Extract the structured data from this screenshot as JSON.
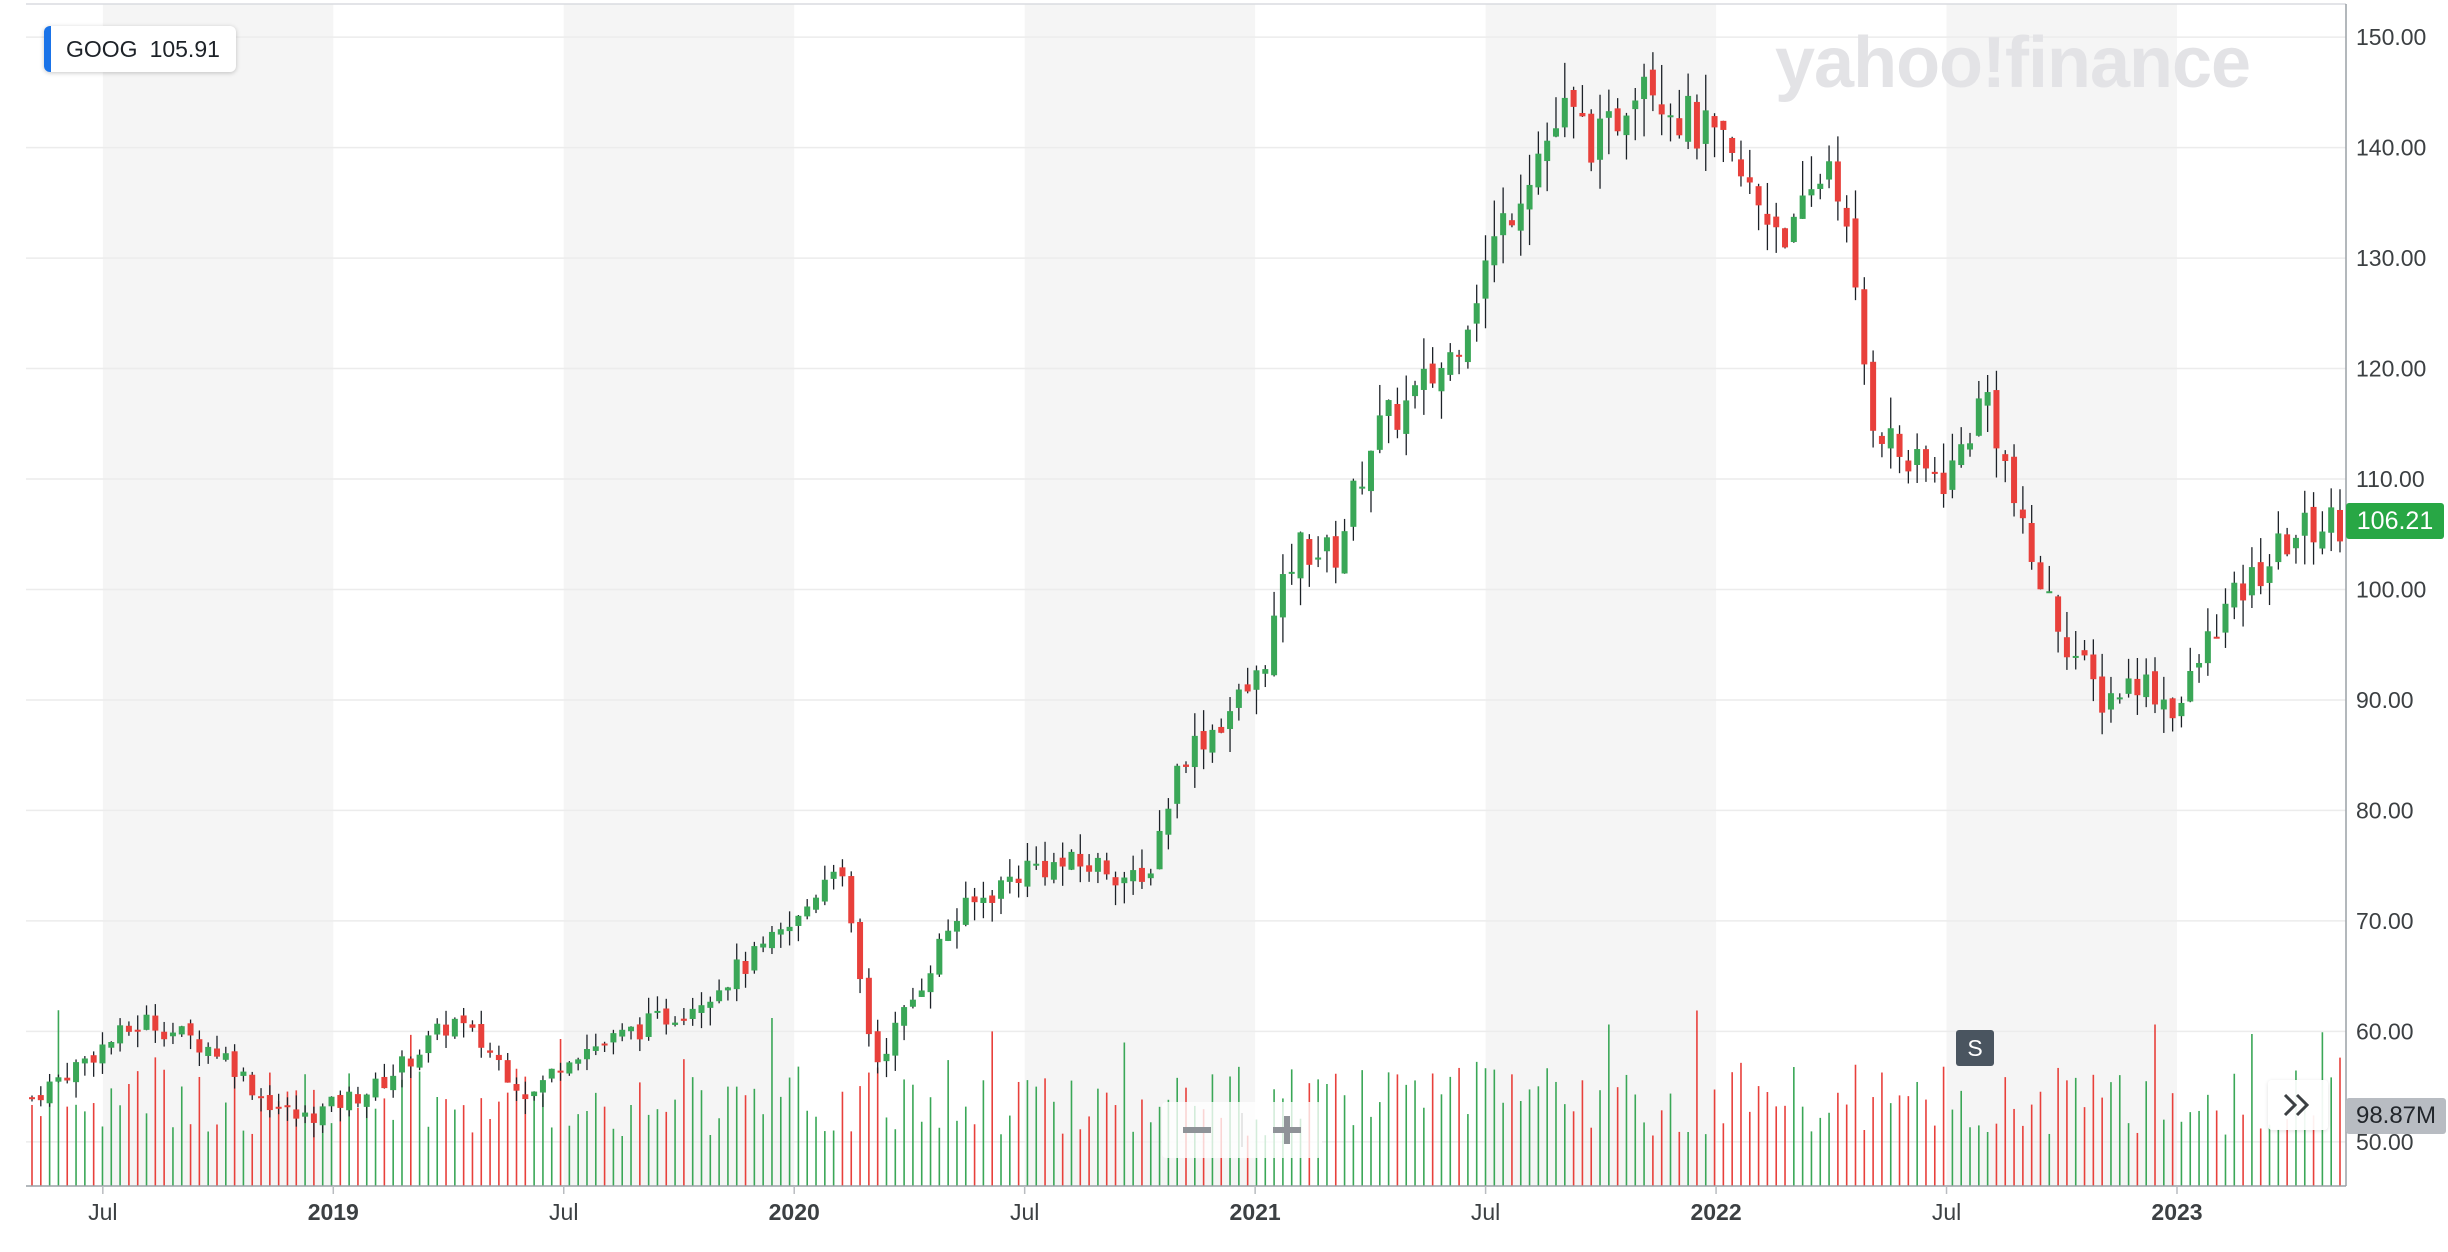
{
  "ticker": {
    "symbol": "GOOG",
    "value": "105.91",
    "accent": "#1a73e8"
  },
  "brand": {
    "watermark": "yahoo!finance"
  },
  "price_tag": {
    "label": "106.21",
    "color": "#28a745"
  },
  "volume_tag": {
    "label": "98.87M"
  },
  "split_marker": {
    "label": "S"
  },
  "controls": {
    "zoom_out_icon": "minus-icon",
    "zoom_in_icon": "plus-icon",
    "expand_icon": "double-chevron-right-icon"
  },
  "colors": {
    "up": "#3aa757",
    "down": "#e8403b",
    "shade": "#f5f5f5",
    "grid": "#ececec",
    "axis_text": "#3c4043"
  },
  "chart_data": {
    "type": "candlestick",
    "title": "",
    "xlabel": "",
    "ylabel": "",
    "ylim": [
      46,
      153
    ],
    "grid": true,
    "y_ticks": [
      "50.00",
      "60.00",
      "70.00",
      "80.00",
      "90.00",
      "100.00",
      "110.00",
      "120.00",
      "130.00",
      "140.00",
      "150.00"
    ],
    "x_ticks": [
      {
        "label": "Jul",
        "date": "2018-07"
      },
      {
        "label": "2019",
        "date": "2019-01"
      },
      {
        "label": "Jul",
        "date": "2019-07"
      },
      {
        "label": "2020",
        "date": "2020-01"
      },
      {
        "label": "Jul",
        "date": "2020-07"
      },
      {
        "label": "2021",
        "date": "2021-01"
      },
      {
        "label": "Jul",
        "date": "2021-07"
      },
      {
        "label": "2022",
        "date": "2022-01"
      },
      {
        "label": "Jul",
        "date": "2022-07"
      },
      {
        "label": "2023",
        "date": "2023-01"
      }
    ],
    "date_range": [
      "2018-05",
      "2023-05"
    ],
    "close_anchors": [
      [
        "2018-05",
        54
      ],
      [
        "2018-07",
        59
      ],
      [
        "2018-08",
        61
      ],
      [
        "2018-10",
        58
      ],
      [
        "2018-11",
        54
      ],
      [
        "2018-12",
        52
      ],
      [
        "2019-02",
        55
      ],
      [
        "2019-04",
        61
      ],
      [
        "2019-05",
        58
      ],
      [
        "2019-06",
        54
      ],
      [
        "2019-07",
        58
      ],
      [
        "2019-08",
        59
      ],
      [
        "2019-10",
        62
      ],
      [
        "2019-12",
        67
      ],
      [
        "2020-01",
        70
      ],
      [
        "2020-02",
        76
      ],
      [
        "2020-03",
        57
      ],
      [
        "2020-04",
        63
      ],
      [
        "2020-05",
        70
      ],
      [
        "2020-07",
        75
      ],
      [
        "2020-09",
        75
      ],
      [
        "2020-10",
        73
      ],
      [
        "2020-11",
        85
      ],
      [
        "2020-12",
        88
      ],
      [
        "2021-01",
        92
      ],
      [
        "2021-02",
        104
      ],
      [
        "2021-03",
        103
      ],
      [
        "2021-04",
        114
      ],
      [
        "2021-05",
        117
      ],
      [
        "2021-06",
        121
      ],
      [
        "2021-07",
        130
      ],
      [
        "2021-08",
        138
      ],
      [
        "2021-09",
        143
      ],
      [
        "2021-10",
        140
      ],
      [
        "2021-11",
        148
      ],
      [
        "2021-12",
        143
      ],
      [
        "2022-01",
        140
      ],
      [
        "2022-02",
        135
      ],
      [
        "2022-03",
        132
      ],
      [
        "2022-04",
        140
      ],
      [
        "2022-05",
        116
      ],
      [
        "2022-06",
        111
      ],
      [
        "2022-07",
        110
      ],
      [
        "2022-08",
        118
      ],
      [
        "2022-09",
        104
      ],
      [
        "2022-10",
        96
      ],
      [
        "2022-11",
        90
      ],
      [
        "2022-12",
        92
      ],
      [
        "2023-01",
        89
      ],
      [
        "2023-02",
        97
      ],
      [
        "2023-03",
        101
      ],
      [
        "2023-04",
        105
      ],
      [
        "2023-05",
        106.21
      ]
    ],
    "volume": {
      "unit": "shares",
      "last": "98.87M",
      "max_shown": 130000000
    }
  }
}
